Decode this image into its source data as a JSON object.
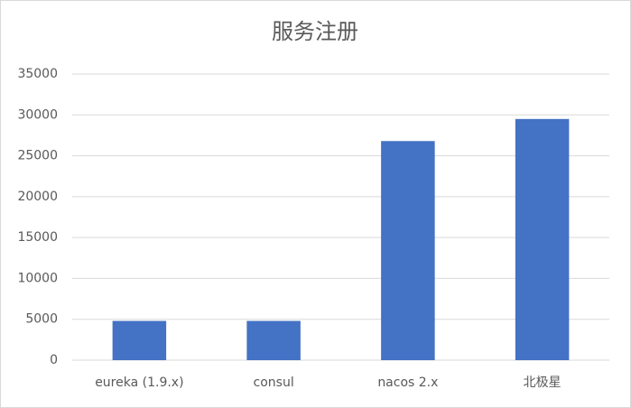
{
  "chart_data": {
    "type": "bar",
    "title": "服务注册",
    "categories": [
      "eureka (1.9.x)",
      "consul",
      "nacos 2.x",
      "北极星"
    ],
    "values": [
      4800,
      4800,
      26800,
      29500
    ],
    "color": "#4472c4",
    "ylim": [
      0,
      35000
    ],
    "yticks": [
      0,
      5000,
      10000,
      15000,
      20000,
      25000,
      30000,
      35000
    ],
    "grid": true
  }
}
